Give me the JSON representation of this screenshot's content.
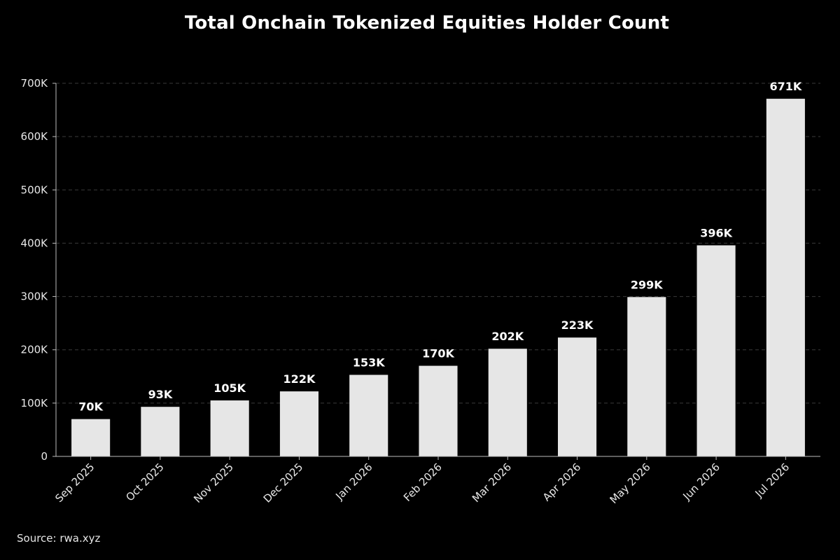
{
  "chart_data": {
    "type": "bar",
    "title": "Total Onchain Tokenized Equities Holder Count",
    "xlabel": "",
    "ylabel": "",
    "categories": [
      "Sep 2025",
      "Oct 2025",
      "Nov 2025",
      "Dec 2025",
      "Jan 2026",
      "Feb 2026",
      "Mar 2026",
      "Apr 2026",
      "May 2026",
      "Jun 2026",
      "Jul 2026"
    ],
    "values": [
      70000,
      93000,
      105000,
      122000,
      153000,
      170000,
      202000,
      223000,
      299000,
      396000,
      671000
    ],
    "data_labels": [
      "70K",
      "93K",
      "105K",
      "122K",
      "153K",
      "170K",
      "202K",
      "223K",
      "299K",
      "396K",
      "671K"
    ],
    "ylim": [
      0,
      700000
    ],
    "yticks": [
      0,
      100000,
      200000,
      300000,
      400000,
      500000,
      600000,
      700000
    ],
    "ytick_labels": [
      "0",
      "100K",
      "200K",
      "300K",
      "400K",
      "500K",
      "600K",
      "700K"
    ],
    "grid": "horizontal dashed",
    "legend": "none",
    "colors": {
      "background": "#000000",
      "bar": "#e6e6e6",
      "grid": "#3a3a3a",
      "axis": "#bdbdbd",
      "text": "#ffffff"
    },
    "source": "Source: rwa.xyz"
  }
}
